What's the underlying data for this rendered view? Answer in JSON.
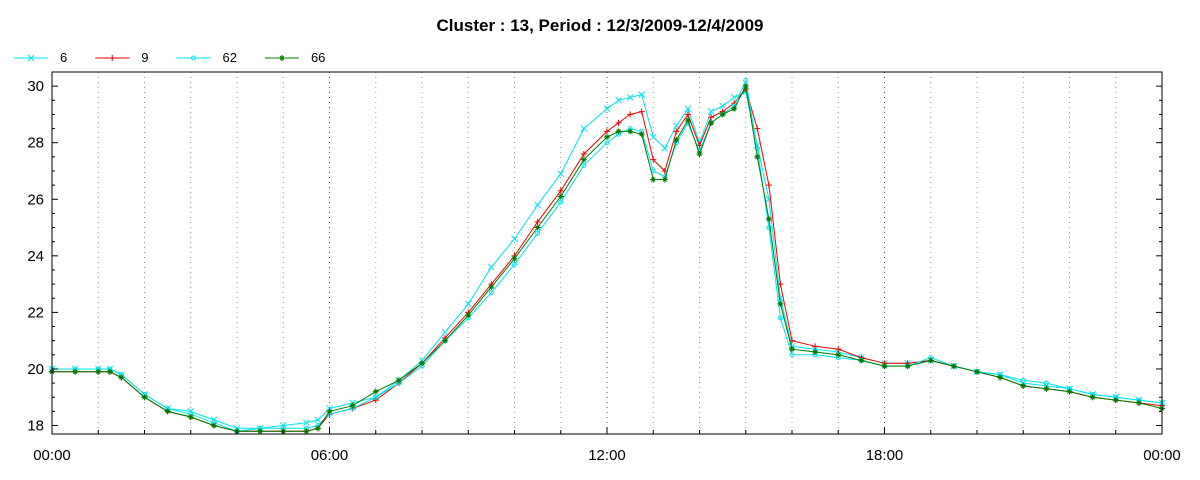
{
  "chart_data": {
    "type": "line",
    "title": "Cluster : 13, Period : 12/3/2009-12/4/2009",
    "xlabel": "",
    "ylabel": "",
    "xlim": [
      0,
      24
    ],
    "ylim": [
      17.7,
      30.5
    ],
    "x_ticks": [
      {
        "value": 0,
        "label": "00:00"
      },
      {
        "value": 6,
        "label": "06:00"
      },
      {
        "value": 12,
        "label": "12:00"
      },
      {
        "value": 18,
        "label": "18:00"
      },
      {
        "value": 24,
        "label": "00:00"
      }
    ],
    "y_ticks": [
      18,
      20,
      22,
      24,
      26,
      28,
      30
    ],
    "grid": "dotted vertical lines every hour",
    "legend_position": "top-left",
    "x": [
      0,
      0.5,
      1,
      1.25,
      1.5,
      2,
      2.5,
      3,
      3.5,
      4,
      4.5,
      5,
      5.5,
      5.75,
      6,
      6.5,
      7,
      7.5,
      8,
      8.5,
      9,
      9.5,
      10,
      10.5,
      11,
      11.5,
      12,
      12.25,
      12.5,
      12.75,
      13,
      13.25,
      13.5,
      13.75,
      14,
      14.25,
      14.5,
      14.75,
      15,
      15.25,
      15.5,
      15.75,
      16,
      16.5,
      17,
      17.5,
      18,
      18.5,
      19,
      19.5,
      20,
      20.5,
      21,
      21.5,
      22,
      22.5,
      23,
      23.5,
      24
    ],
    "series": [
      {
        "name": "6",
        "color": "#00e5ee",
        "marker": "x",
        "values": [
          20.0,
          20.0,
          20.0,
          20.0,
          19.8,
          19.1,
          18.6,
          18.5,
          18.2,
          17.9,
          17.9,
          18.0,
          18.1,
          18.2,
          18.6,
          18.8,
          19.0,
          19.6,
          20.3,
          21.3,
          22.3,
          23.6,
          24.6,
          25.8,
          26.9,
          28.5,
          29.2,
          29.5,
          29.6,
          29.7,
          28.2,
          27.8,
          28.6,
          29.2,
          28.0,
          29.1,
          29.3,
          29.6,
          29.8,
          27.9,
          26.0,
          22.5,
          20.8,
          20.7,
          20.6,
          20.4,
          20.2,
          20.2,
          20.3,
          20.1,
          19.9,
          19.8,
          19.5,
          19.4,
          19.3,
          19.1,
          19.0,
          18.9,
          18.8
        ]
      },
      {
        "name": "9",
        "color": "#ee0000",
        "marker": "+",
        "values": [
          19.9,
          19.9,
          19.9,
          19.9,
          19.7,
          19.0,
          18.5,
          18.3,
          18.0,
          17.8,
          17.8,
          17.8,
          17.8,
          17.9,
          18.4,
          18.6,
          18.9,
          19.5,
          20.2,
          21.1,
          22.0,
          23.0,
          24.0,
          25.2,
          26.3,
          27.6,
          28.4,
          28.7,
          29.0,
          29.1,
          27.4,
          27.0,
          28.4,
          29.0,
          27.9,
          28.9,
          29.1,
          29.4,
          29.9,
          28.5,
          26.5,
          23.0,
          21.0,
          20.8,
          20.7,
          20.4,
          20.2,
          20.2,
          20.3,
          20.1,
          19.9,
          19.7,
          19.4,
          19.3,
          19.2,
          19.0,
          18.9,
          18.8,
          18.7
        ]
      },
      {
        "name": "62",
        "color": "#00e5ee",
        "marker": "circle",
        "values": [
          20.0,
          20.0,
          20.0,
          20.0,
          19.8,
          19.1,
          18.6,
          18.4,
          18.1,
          17.8,
          17.9,
          17.9,
          17.9,
          18.0,
          18.4,
          18.6,
          19.0,
          19.5,
          20.1,
          21.0,
          21.8,
          22.7,
          23.7,
          24.8,
          25.9,
          27.2,
          28.0,
          28.3,
          28.5,
          28.4,
          27.0,
          26.8,
          28.0,
          28.7,
          27.7,
          28.7,
          29.0,
          29.3,
          30.2,
          27.8,
          25.0,
          21.8,
          20.5,
          20.5,
          20.4,
          20.3,
          20.1,
          20.1,
          20.4,
          20.1,
          19.9,
          19.8,
          19.6,
          19.5,
          19.3,
          19.1,
          19.0,
          18.9,
          18.8
        ]
      },
      {
        "name": "66",
        "color": "#007a00",
        "marker": "asterisk",
        "values": [
          19.9,
          19.9,
          19.9,
          19.9,
          19.7,
          19.0,
          18.5,
          18.3,
          18.0,
          17.8,
          17.8,
          17.8,
          17.8,
          17.9,
          18.5,
          18.7,
          19.2,
          19.6,
          20.2,
          21.0,
          21.9,
          22.9,
          23.9,
          25.0,
          26.1,
          27.4,
          28.2,
          28.4,
          28.4,
          28.3,
          26.7,
          26.7,
          28.1,
          28.8,
          27.6,
          28.7,
          29.0,
          29.2,
          30.0,
          27.5,
          25.3,
          22.3,
          20.7,
          20.6,
          20.5,
          20.3,
          20.1,
          20.1,
          20.3,
          20.1,
          19.9,
          19.7,
          19.4,
          19.3,
          19.2,
          19.0,
          18.9,
          18.8,
          18.6
        ]
      }
    ]
  }
}
